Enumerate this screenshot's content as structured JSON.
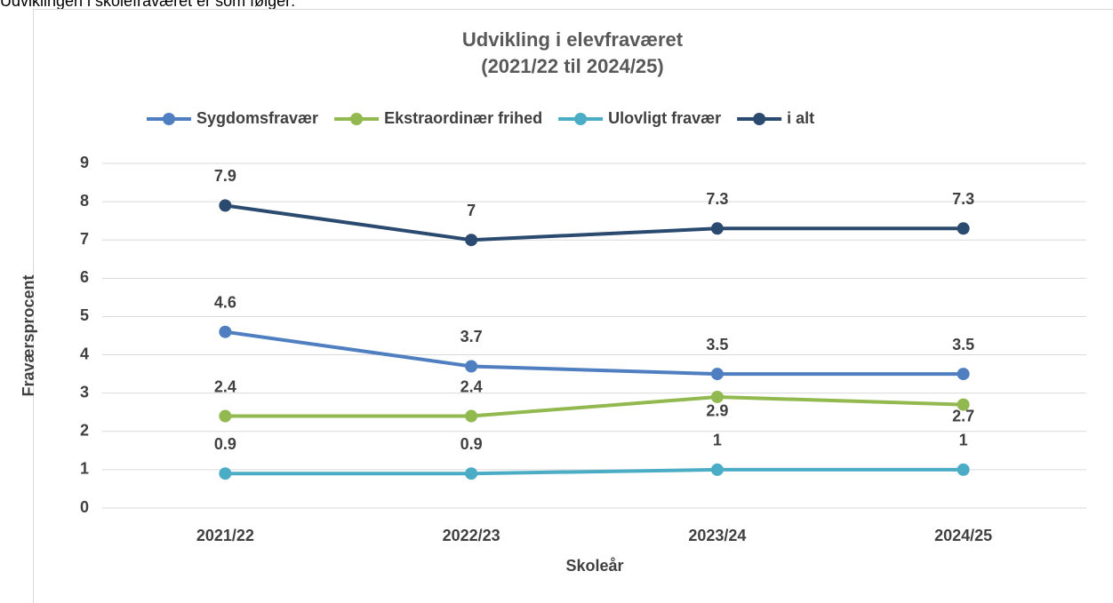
{
  "intro": "Udviklingen i skolefraværet er som følger:",
  "chart_data": {
    "type": "line",
    "title": [
      "Udvikling i elevfraværet",
      "(2021/22 til 2024/25)"
    ],
    "x_label": "Skoleår",
    "y_label": "Fraværsprocent",
    "categories": [
      "2021/22",
      "2022/23",
      "2023/24",
      "2024/25"
    ],
    "series": [
      {
        "name": "Sygdomsfravær",
        "color": "#4f7fc0",
        "values": [
          4.6,
          3.7,
          3.5,
          3.5
        ]
      },
      {
        "name": "Ekstraordinær frihed",
        "color": "#92b94f",
        "values": [
          2.4,
          2.4,
          2.9,
          2.7
        ]
      },
      {
        "name": "Ulovligt fravær",
        "color": "#4bacc6",
        "values": [
          0.9,
          0.9,
          1,
          1
        ]
      },
      {
        "name": "i alt",
        "color": "#2b4a6f",
        "values": [
          7.9,
          7,
          7.3,
          7.3
        ]
      }
    ],
    "ylim": [
      0,
      9
    ],
    "yticks": [
      0,
      1,
      2,
      3,
      4,
      5,
      6,
      7,
      8,
      9
    ],
    "grid": true,
    "legend": "top"
  }
}
